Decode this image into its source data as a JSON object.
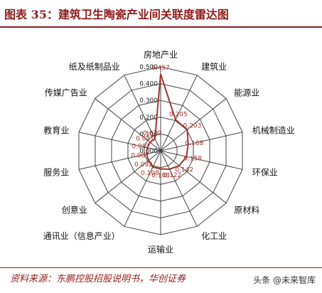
{
  "header": {
    "title": "图表 35：建筑卫生陶瓷产业间关联度雷达图"
  },
  "chart_data": {
    "type": "radar",
    "title": "图表 35：建筑卫生陶瓷产业间关联度雷达图",
    "categories": [
      "房地产业",
      "建筑业",
      "能源业",
      "机械制造业",
      "环保业",
      "原材料",
      "化工业",
      "运输业",
      "通讯业（信息产业）",
      "创意业",
      "服务业",
      "教育业",
      "传媒广告业",
      "纸及纸制品业"
    ],
    "values": [
      0.457,
      0.205,
      0.203,
      0.168,
      0.158,
      0.142,
      0.122,
      0.108,
      0.108,
      0.092,
      0.087,
      0.082,
      0.081,
      0.079
    ],
    "value_labels": [
      "0.457",
      "0.205",
      "0.203",
      "0.168",
      "0.158",
      "0.142",
      "0.122",
      "0.108",
      "0.108",
      "0.092",
      "0.087",
      "0.082",
      "0.081",
      "0.079"
    ],
    "axis_ticks": [
      "0.000",
      "0.100",
      "0.200",
      "0.300",
      "0.400",
      "0.500"
    ],
    "rlim": [
      0,
      0.5
    ],
    "grid": true,
    "series_color": "#a0342a",
    "grid_color": "#444444"
  },
  "footer": {
    "source": "资料来源：东鹏控股招股说明书，华创证券",
    "watermark": "头条 @未来智库"
  }
}
